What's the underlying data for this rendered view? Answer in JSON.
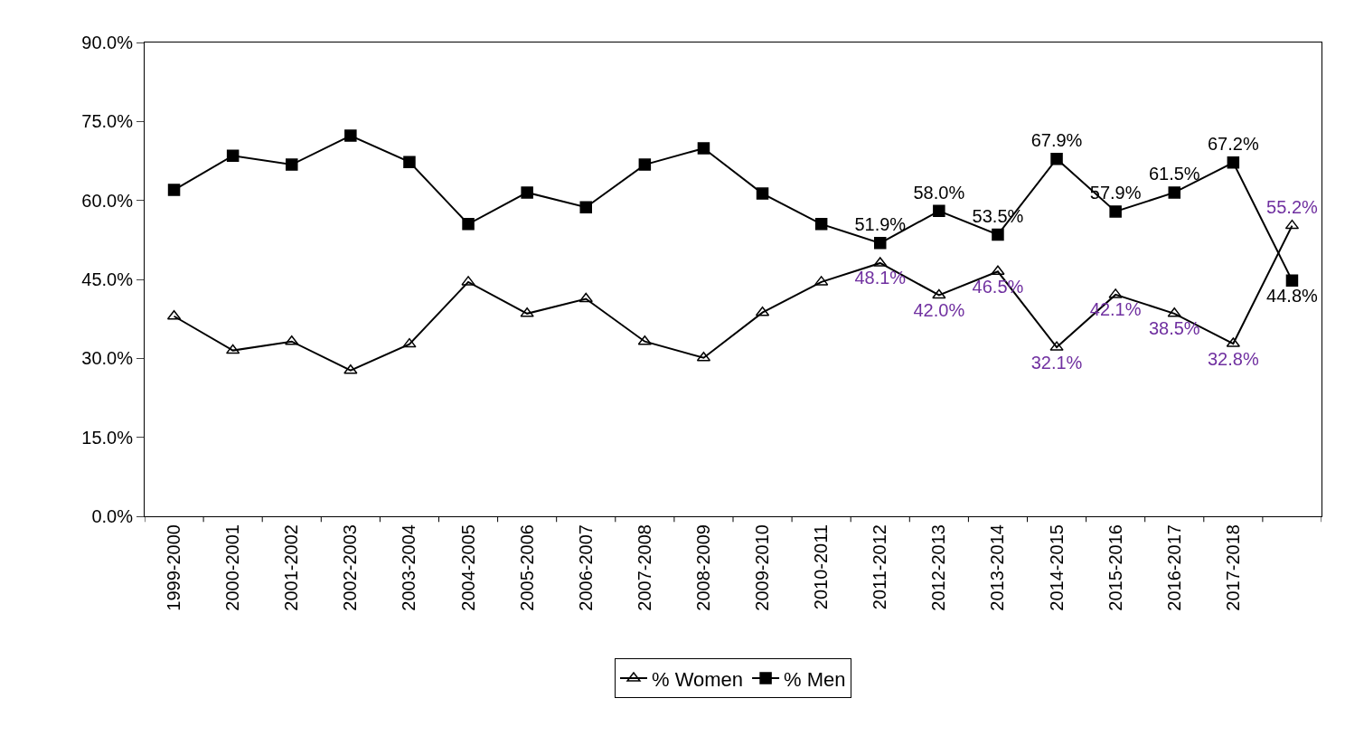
{
  "chart_data": {
    "type": "line",
    "categories": [
      "1999-2000",
      "2000-2001",
      "2001-2002",
      "2002-2003",
      "2003-2004",
      "2004-2005",
      "2005-2006",
      "2006-2007",
      "2007-2008",
      "2008-2009",
      "2009-2010",
      "2010-2011",
      "2011-2012",
      "2012-2013",
      "2013-2014",
      "2014-2015",
      "2015-2016",
      "2016-2017",
      "2017-2018",
      null
    ],
    "series": [
      {
        "name": "% Women",
        "color": "#000000",
        "marker": "triangle",
        "values": [
          38.0,
          31.5,
          33.2,
          27.7,
          32.7,
          44.5,
          38.5,
          41.3,
          33.2,
          30.1,
          38.7,
          44.5,
          48.1,
          42.0,
          46.5,
          32.1,
          42.1,
          38.5,
          32.8,
          55.2
        ],
        "value_labels": [
          null,
          null,
          null,
          null,
          null,
          null,
          null,
          null,
          null,
          null,
          null,
          null,
          "48.1%",
          "42.0%",
          "46.5%",
          "32.1%",
          "42.1%",
          "38.5%",
          "32.8%",
          "55.2%"
        ]
      },
      {
        "name": "% Men",
        "color": "#000000",
        "marker": "square",
        "values": [
          62.0,
          68.5,
          66.8,
          72.3,
          67.3,
          55.5,
          61.5,
          58.7,
          66.8,
          69.9,
          61.3,
          55.5,
          51.9,
          58.0,
          53.5,
          67.9,
          57.9,
          61.5,
          67.2,
          44.8
        ],
        "value_labels": [
          null,
          null,
          null,
          null,
          null,
          null,
          null,
          null,
          null,
          null,
          null,
          null,
          "51.9%",
          "58.0%",
          "53.5%",
          "67.9%",
          "57.9%",
          "61.5%",
          "67.2%",
          "44.8%"
        ]
      }
    ],
    "ylim": [
      0,
      90
    ],
    "yticks": [
      {
        "value": 0,
        "label": "0.0%"
      },
      {
        "value": 15,
        "label": "15.0%"
      },
      {
        "value": 30,
        "label": "30.0%"
      },
      {
        "value": 45,
        "label": "45.0%"
      },
      {
        "value": 60,
        "label": "60.0%"
      },
      {
        "value": 75,
        "label": "75.0%"
      },
      {
        "value": 90,
        "label": "90.0%"
      }
    ],
    "grid": false,
    "legend": "bottom",
    "line_style": "solid"
  }
}
